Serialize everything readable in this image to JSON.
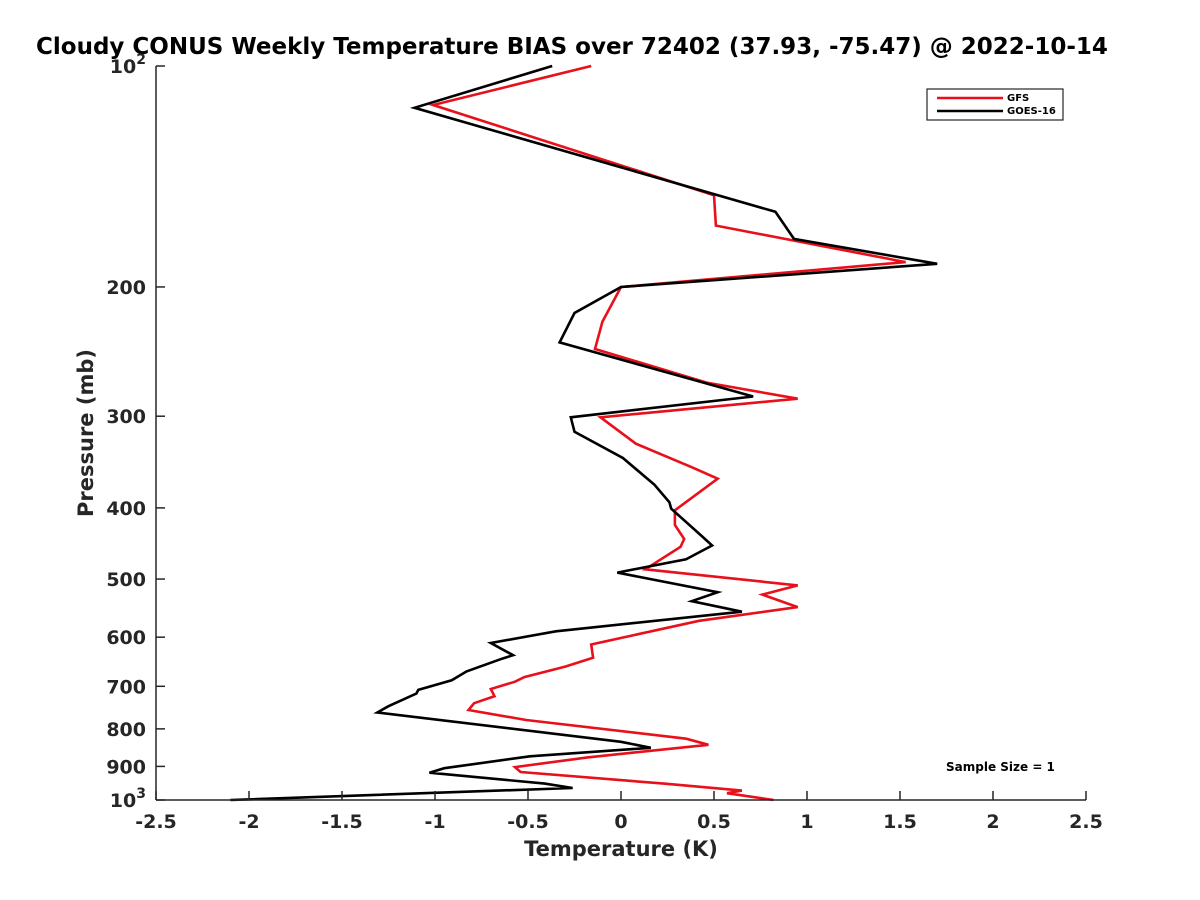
{
  "chart_data": {
    "type": "line",
    "title": "Cloudy CONUS Weekly Temperature BIAS over 72402 (37.93, -75.47) @ 2022-10-14",
    "xlabel": "Temperature (K)",
    "ylabel": "Pressure (mb)",
    "xlim": [
      -2.5,
      2.5
    ],
    "ylim": [
      100,
      1000
    ],
    "yscale": "log",
    "yreversed": true,
    "grid": false,
    "legend_position": "top-right",
    "x_ticks": [
      {
        "value": -2.5,
        "label": "-2.5"
      },
      {
        "value": -2,
        "label": "-2"
      },
      {
        "value": -1.5,
        "label": "-1.5"
      },
      {
        "value": -1,
        "label": "-1"
      },
      {
        "value": -0.5,
        "label": "-0.5"
      },
      {
        "value": 0,
        "label": "0"
      },
      {
        "value": 0.5,
        "label": "0.5"
      },
      {
        "value": 1,
        "label": "1"
      },
      {
        "value": 1.5,
        "label": "1.5"
      },
      {
        "value": 2,
        "label": "2"
      },
      {
        "value": 2.5,
        "label": "2.5"
      }
    ],
    "y_ticks": [
      {
        "value": 100,
        "label": "10",
        "sup": "2"
      },
      {
        "value": 200,
        "label": "200",
        "sup": ""
      },
      {
        "value": 300,
        "label": "300",
        "sup": ""
      },
      {
        "value": 400,
        "label": "400",
        "sup": ""
      },
      {
        "value": 500,
        "label": "500",
        "sup": ""
      },
      {
        "value": 600,
        "label": "600",
        "sup": ""
      },
      {
        "value": 700,
        "label": "700",
        "sup": ""
      },
      {
        "value": 800,
        "label": "800",
        "sup": ""
      },
      {
        "value": 900,
        "label": "900",
        "sup": ""
      },
      {
        "value": 1000,
        "label": "10",
        "sup": "3"
      }
    ],
    "series": [
      {
        "name": "GFS",
        "color": "#e8101a",
        "points": [
          [
            -0.16,
            100
          ],
          [
            -1.01,
            113
          ],
          [
            0.5,
            150
          ],
          [
            0.51,
            165
          ],
          [
            1.53,
            185
          ],
          [
            0.0,
            200
          ],
          [
            -0.1,
            223
          ],
          [
            -0.14,
            243
          ],
          [
            0.46,
            270
          ],
          [
            0.95,
            284
          ],
          [
            -0.11,
            301
          ],
          [
            0.08,
            327
          ],
          [
            0.38,
            352
          ],
          [
            0.52,
            365
          ],
          [
            0.29,
            403
          ],
          [
            0.29,
            422
          ],
          [
            0.34,
            441
          ],
          [
            0.32,
            452
          ],
          [
            0.13,
            485
          ],
          [
            0.95,
            510
          ],
          [
            0.76,
            525
          ],
          [
            0.95,
            546
          ],
          [
            0.42,
            570
          ],
          [
            -0.16,
            614
          ],
          [
            -0.15,
            640
          ],
          [
            -0.3,
            658
          ],
          [
            -0.52,
            680
          ],
          [
            -0.57,
            690
          ],
          [
            -0.7,
            706
          ],
          [
            -0.68,
            722
          ],
          [
            -0.79,
            738
          ],
          [
            -0.82,
            754
          ],
          [
            -0.51,
            778
          ],
          [
            0.35,
            825
          ],
          [
            0.47,
            841
          ],
          [
            -0.18,
            875
          ],
          [
            -0.57,
            902
          ],
          [
            -0.54,
            916
          ],
          [
            0.23,
            950
          ],
          [
            0.65,
            971
          ],
          [
            0.57,
            979
          ],
          [
            0.82,
            1000
          ]
        ]
      },
      {
        "name": "GOES-16",
        "color": "#000000",
        "points": [
          [
            -0.37,
            100
          ],
          [
            -1.11,
            114
          ],
          [
            0.83,
            158
          ],
          [
            0.93,
            172
          ],
          [
            1.7,
            186
          ],
          [
            0.0,
            200
          ],
          [
            -0.25,
            217
          ],
          [
            -0.33,
            238
          ],
          [
            0.71,
            282
          ],
          [
            -0.27,
            301
          ],
          [
            -0.25,
            315
          ],
          [
            0.01,
            342
          ],
          [
            0.18,
            372
          ],
          [
            0.26,
            393
          ],
          [
            0.27,
            401
          ],
          [
            0.43,
            436
          ],
          [
            0.49,
            450
          ],
          [
            0.35,
            470
          ],
          [
            -0.02,
            490
          ],
          [
            0.52,
            521
          ],
          [
            0.38,
            536
          ],
          [
            0.65,
            554
          ],
          [
            -0.35,
            589
          ],
          [
            -0.7,
            611
          ],
          [
            -0.58,
            635
          ],
          [
            -0.64,
            642
          ],
          [
            -0.83,
            668
          ],
          [
            -0.91,
            687
          ],
          [
            -1.09,
            708
          ],
          [
            -1.1,
            716
          ],
          [
            -1.25,
            745
          ],
          [
            -1.31,
            760
          ],
          [
            0.0,
            833
          ],
          [
            0.16,
            849
          ],
          [
            -0.49,
            872
          ],
          [
            -0.95,
            905
          ],
          [
            -1.03,
            918
          ],
          [
            -0.41,
            950
          ],
          [
            -0.26,
            963
          ],
          [
            -2.1,
            1000
          ]
        ]
      }
    ],
    "legend": [
      "GFS",
      "GOES-16"
    ],
    "annotations": [
      "Sample Size = 1"
    ]
  }
}
